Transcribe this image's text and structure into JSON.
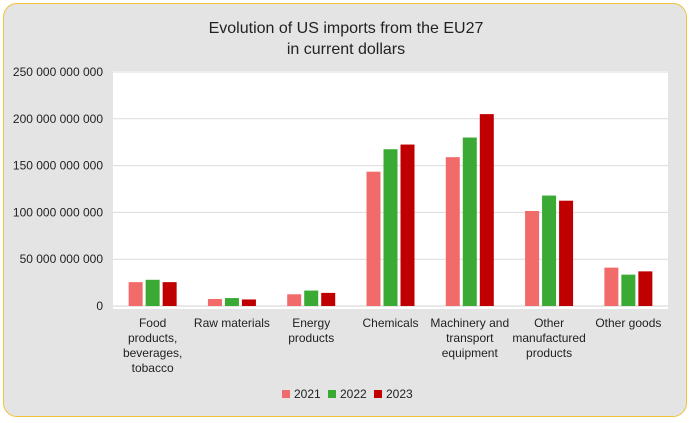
{
  "chart_data": {
    "type": "bar",
    "title": [
      "Evolution of US imports from the EU27",
      "in current dollars"
    ],
    "xlabel": "",
    "ylabel": "",
    "ylim": [
      0,
      250000000000
    ],
    "yticks": [
      0,
      50000000000,
      100000000000,
      150000000000,
      200000000000,
      250000000000
    ],
    "ytick_labels": [
      "0",
      "50 000 000 000",
      "100 000 000 000",
      "150 000 000 000",
      "200 000 000 000",
      "250 000 000 000"
    ],
    "grid": true,
    "legend_position": "bottom",
    "categories": [
      [
        "Food",
        "products,",
        "beverages,",
        "tobacco"
      ],
      [
        "Raw materials"
      ],
      [
        "Energy",
        "products"
      ],
      [
        "Chemicals"
      ],
      [
        "Machinery and",
        "transport",
        "equipment"
      ],
      [
        "Other",
        "manufactured",
        "products"
      ],
      [
        "Other goods"
      ]
    ],
    "series": [
      {
        "name": "2021",
        "color": "#f26b6b",
        "values": [
          25500000000,
          7500000000,
          12500000000,
          143500000000,
          159000000000,
          101500000000,
          41000000000
        ]
      },
      {
        "name": "2022",
        "color": "#3aaa35",
        "values": [
          28000000000,
          8500000000,
          16500000000,
          167500000000,
          180000000000,
          118000000000,
          33500000000
        ]
      },
      {
        "name": "2023",
        "color": "#c00000",
        "values": [
          25500000000,
          7000000000,
          14000000000,
          172500000000,
          205000000000,
          112500000000,
          37000000000
        ]
      }
    ]
  }
}
